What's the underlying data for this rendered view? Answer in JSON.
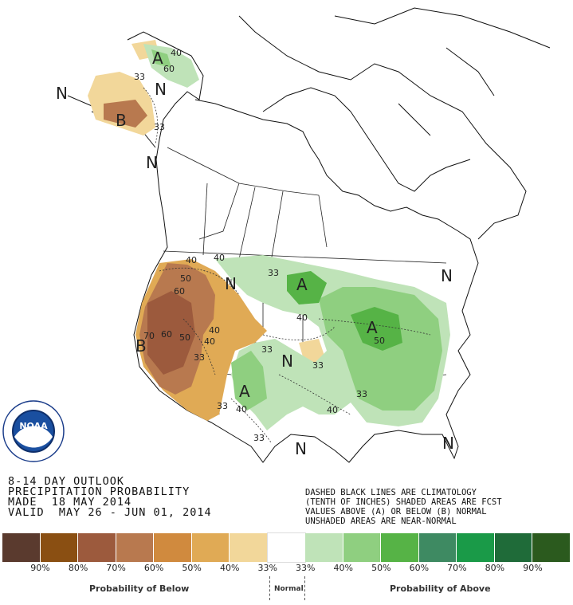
{
  "title_lines": [
    "8-14 DAY OUTLOOK",
    "PRECIPITATION PROBABILITY",
    "MADE  18 MAY 2014",
    "VALID  MAY 26 - JUN 01, 2014"
  ],
  "notes_lines": [
    "DASHED BLACK LINES ARE CLIMATOLOGY",
    "(TENTH OF INCHES) SHADED AREAS ARE FCST",
    "VALUES ABOVE (A) OR BELOW (B) NORMAL",
    "UNSHADED AREAS ARE NEAR-NORMAL"
  ],
  "logo": {
    "text": "NOAA",
    "ring_text": "NATIONAL OCEANIC AND ATMOSPHERIC ADMINISTRATION · U.S. DEPARTMENT OF COMMERCE"
  },
  "map_labels": {
    "alaska_a": "A",
    "alaska_n1": "N",
    "alaska_n2": "N",
    "alaska_b": "B",
    "bc_n": "N",
    "west_b": "B",
    "pnw_n": "N",
    "plains_a": "A",
    "east_a": "A",
    "sw_a": "A",
    "central_n": "N",
    "texas_n": "N",
    "ne_n": "N",
    "fl_n": "N",
    "p33a": "33",
    "p40a": "40",
    "p60a": "60",
    "p40b": "40",
    "p50a": "50",
    "p60b": "60",
    "p70": "70",
    "p60c": "60",
    "p50b": "50",
    "p40c": "40",
    "p33b": "33",
    "p33c": "33",
    "p33d": "33",
    "p40d": "40",
    "p40e": "40",
    "p33e": "33",
    "p40f": "40",
    "p50c": "50",
    "p33f": "33",
    "p33g": "33",
    "p40g": "40",
    "p33h": "33",
    "p40h": "40",
    "p33i": "33"
  },
  "legend": {
    "colors": [
      "#5a3a2e",
      "#8a4f12",
      "#9c5a3d",
      "#b8794f",
      "#d08a3e",
      "#e0aa55",
      "#f2d79a",
      "#ffffff",
      "#bfe3b8",
      "#8fcf80",
      "#56b346",
      "#3e8a62",
      "#1a9a48",
      "#1f6b39",
      "#2b5a1e"
    ],
    "labels": [
      "90%",
      "80%",
      "70%",
      "60%",
      "50%",
      "40%",
      "33%",
      "33%",
      "40%",
      "50%",
      "60%",
      "70%",
      "80%",
      "90%"
    ],
    "below_caption": "Probability of Below",
    "normal_caption": "Normal",
    "above_caption": "Probability of Above"
  }
}
